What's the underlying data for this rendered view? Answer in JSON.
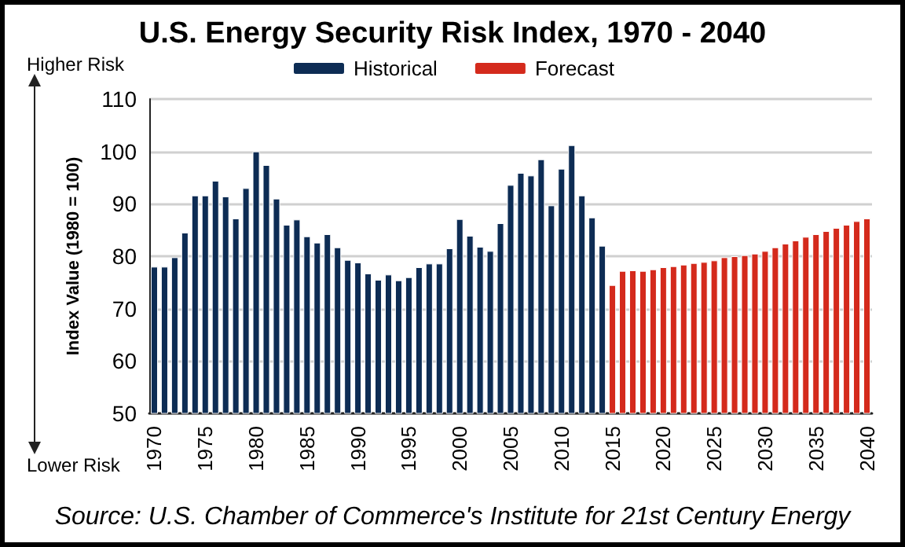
{
  "chart_data": {
    "type": "bar",
    "title": "U.S. Energy Security Risk Index, 1970 - 2040",
    "ylabel": "Index Value (1980 = 100)",
    "annotations": [
      "Higher Risk",
      "Lower Risk",
      "Source: U.S. Chamber of Commerce's Institute for 21st Century Energy"
    ],
    "categories": [
      "1970",
      null,
      null,
      null,
      null,
      "1975",
      null,
      null,
      null,
      null,
      "1980",
      null,
      null,
      null,
      null,
      "1985",
      null,
      null,
      null,
      null,
      "1990",
      null,
      null,
      null,
      null,
      "1995",
      null,
      null,
      null,
      null,
      "2000",
      null,
      null,
      null,
      null,
      "2005",
      null,
      null,
      null,
      null,
      "2010",
      null,
      null,
      null,
      null,
      "2015",
      null,
      null,
      null,
      null,
      "2020",
      null,
      null,
      null,
      null,
      "2025",
      null,
      null,
      null,
      null,
      "2030",
      null,
      null,
      null,
      null,
      "2035",
      null,
      null,
      null,
      null,
      "2040"
    ],
    "series": [
      {
        "name": "Historical",
        "color": "#0d2c54",
        "values": [
          78,
          78,
          79.8,
          84.5,
          91.6,
          91.6,
          94.4,
          91.4,
          87.2,
          93,
          100,
          97.4,
          91,
          86,
          87,
          83.8,
          82.6,
          84.2,
          81.7,
          79.3,
          78.8,
          76.7,
          75.5,
          76.5,
          75.4,
          76,
          77.9,
          78.6,
          78.6,
          81.5,
          87.1,
          83.9,
          81.8,
          81,
          86.3,
          93.6,
          95.9,
          95.4,
          98.5,
          89.7,
          96.7,
          101.2,
          91.6,
          87.4,
          82,
          null,
          null,
          null,
          null,
          null,
          null,
          null,
          null,
          null,
          null,
          null,
          null,
          null,
          null,
          null,
          null,
          null,
          null,
          null,
          null,
          null,
          null,
          null,
          null,
          null,
          null
        ]
      },
      {
        "name": "Forecast",
        "color": "#d42a1c",
        "values": [
          null,
          null,
          null,
          null,
          null,
          null,
          null,
          null,
          null,
          null,
          null,
          null,
          null,
          null,
          null,
          null,
          null,
          null,
          null,
          null,
          null,
          null,
          null,
          null,
          null,
          null,
          null,
          null,
          null,
          null,
          null,
          null,
          null,
          null,
          null,
          null,
          null,
          null,
          null,
          null,
          null,
          null,
          null,
          null,
          null,
          74.5,
          77.2,
          77.3,
          77.2,
          77.5,
          77.9,
          78.1,
          78.4,
          78.7,
          78.9,
          79.2,
          79.8,
          80,
          80.2,
          80.5,
          81,
          81.7,
          82.4,
          83,
          83.7,
          84.2,
          84.8,
          85.4,
          86,
          86.7,
          87.2
        ]
      }
    ],
    "ylim": [
      50,
      110
    ],
    "yticks": [
      50,
      60,
      70,
      80,
      90,
      100,
      110
    ],
    "grid": "y",
    "legend": "top"
  }
}
